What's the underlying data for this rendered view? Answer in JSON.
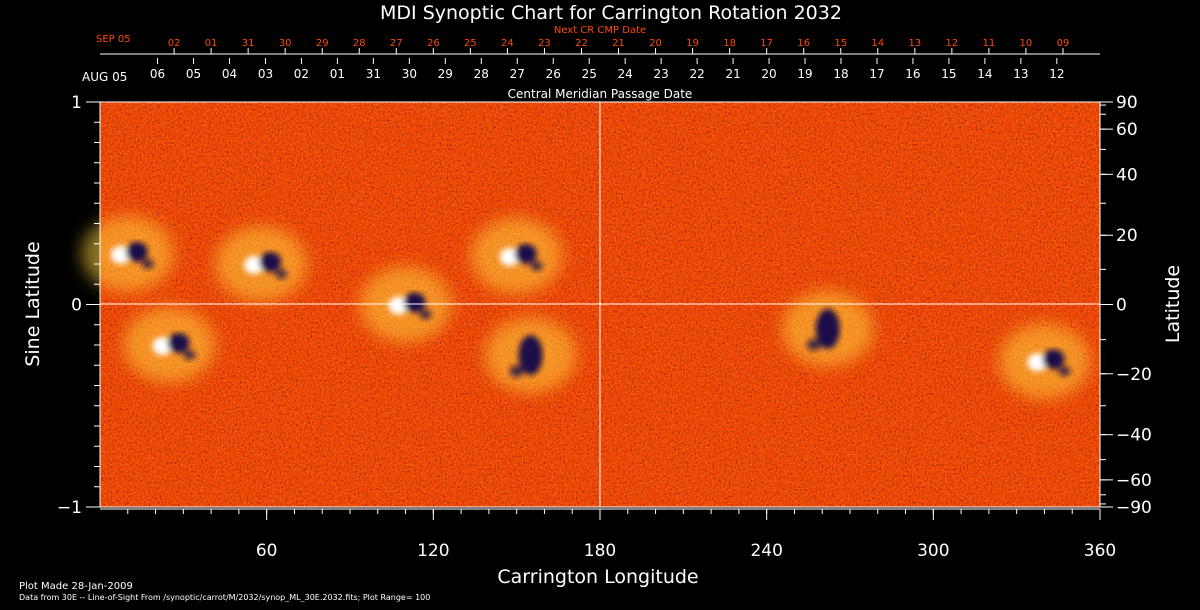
{
  "chart_data": {
    "type": "heatmap",
    "title": "MDI Synoptic Chart for Carrington Rotation 2032",
    "xlabel": "Carrington Longitude",
    "ylabel_left": "Sine Latitude",
    "ylabel_right": "Latitude",
    "xlim": [
      0,
      360
    ],
    "ylim_sine": [
      -1,
      1
    ],
    "x_ticks": [
      60,
      120,
      180,
      240,
      300,
      360
    ],
    "y_ticks_sine": [
      -1,
      0,
      1
    ],
    "y_ticks_latitude": [
      90,
      60,
      40,
      20,
      0,
      -20,
      -40,
      -60,
      -90
    ],
    "grid_lines": {
      "x": 180,
      "y_sine": 0
    },
    "colormap": [
      "#1a0a48",
      "#b81a00",
      "#ff5a10",
      "#ffd040",
      "#ffffff"
    ],
    "cmp_axis": {
      "label": "Central Meridian Passage Date",
      "start_label": "AUG 05",
      "dates": [
        "06",
        "05",
        "04",
        "03",
        "02",
        "01",
        "31",
        "30",
        "29",
        "28",
        "27",
        "26",
        "25",
        "24",
        "23",
        "22",
        "21",
        "20",
        "19",
        "18",
        "17",
        "16",
        "15",
        "14",
        "13",
        "12"
      ]
    },
    "next_cmp_axis": {
      "label": "Next CR CMP Date",
      "start_label": "SEP 05",
      "color": "#ff4a00",
      "dates": [
        "02",
        "01",
        "31",
        "30",
        "29",
        "28",
        "27",
        "26",
        "25",
        "24",
        "23",
        "22",
        "21",
        "20",
        "19",
        "18",
        "17",
        "16",
        "15",
        "14",
        "13",
        "12",
        "11",
        "10",
        "09"
      ]
    },
    "active_regions": [
      {
        "lon": 10,
        "sinlat": 0.25,
        "polarity": "mixed"
      },
      {
        "lon": 58,
        "sinlat": 0.2,
        "polarity": "mixed"
      },
      {
        "lon": 25,
        "sinlat": -0.2,
        "polarity": "mixed"
      },
      {
        "lon": 110,
        "sinlat": 0.0,
        "polarity": "mixed"
      },
      {
        "lon": 150,
        "sinlat": 0.24,
        "polarity": "mixed"
      },
      {
        "lon": 155,
        "sinlat": -0.25,
        "polarity": "negative"
      },
      {
        "lon": 262,
        "sinlat": -0.12,
        "polarity": "negative"
      },
      {
        "lon": 340,
        "sinlat": -0.28,
        "polarity": "mixed"
      }
    ]
  },
  "footer": {
    "plot_made": "Plot Made 28-Jan-2009",
    "source": "Data from 30E -- Line-of-Sight From /synoptic/carrot/M/2032/synop_ML_30E.2032.fits; Plot Range= 100"
  }
}
